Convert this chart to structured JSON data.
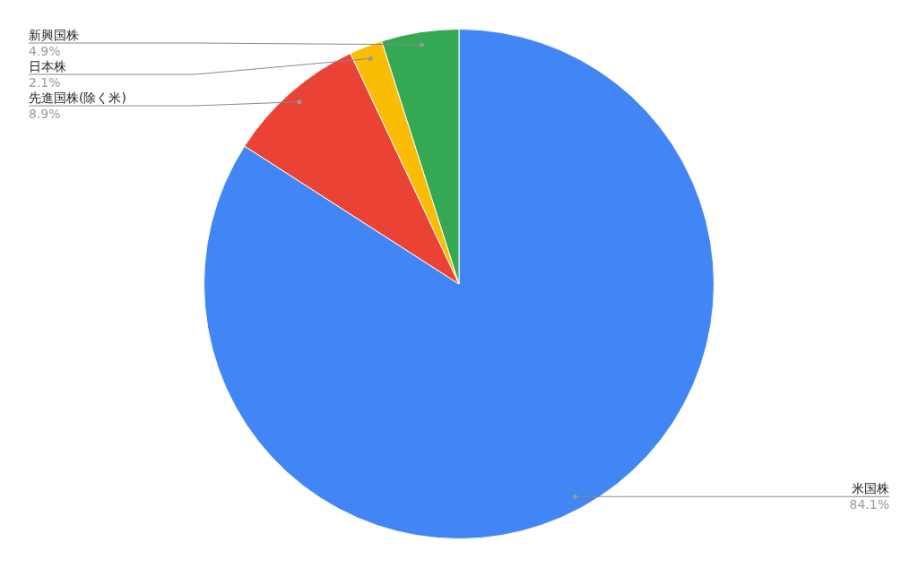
{
  "chart_data": {
    "type": "pie",
    "categories": [
      "米国株",
      "先進国株(除く米)",
      "日本株",
      "新興国株"
    ],
    "values": [
      84.1,
      8.9,
      2.1,
      4.9
    ],
    "value_labels": [
      "84.1%",
      "8.9%",
      "2.1%",
      "4.9%"
    ],
    "colors": [
      "#4285f4",
      "#ea4335",
      "#fbbc04",
      "#34a853"
    ],
    "legend": false
  }
}
